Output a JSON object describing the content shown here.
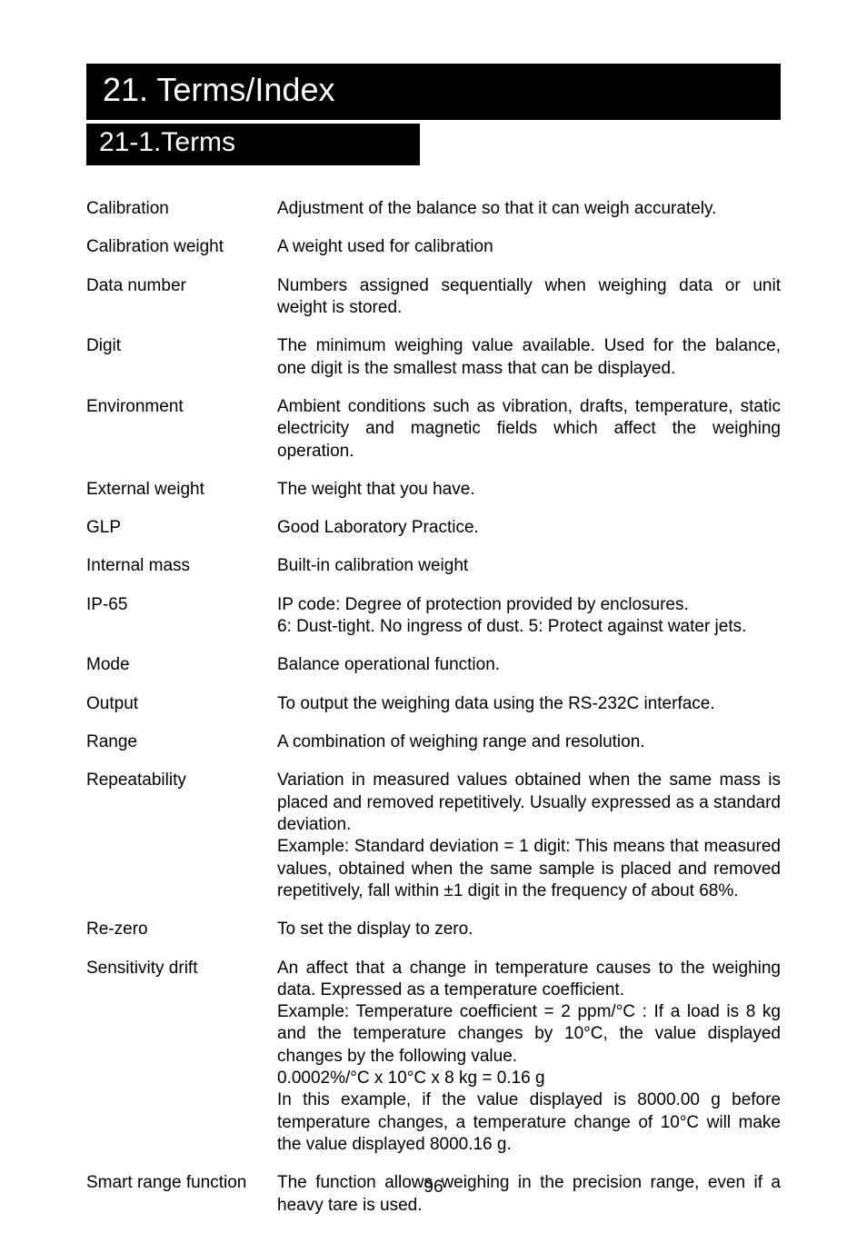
{
  "chapter_title": "21. Terms/Index",
  "section_title": "21-1.Terms",
  "page_number": "96",
  "terms": [
    {
      "term": "Calibration",
      "def": "Adjustment of the balance so that it can weigh accurately."
    },
    {
      "term": "Calibration weight",
      "def": "A weight used for calibration"
    },
    {
      "term": "Data number",
      "def": "Numbers assigned sequentially when weighing data or unit weight is stored."
    },
    {
      "term": "Digit",
      "def": "The minimum weighing value available. Used for the balance, one digit is the smallest mass that can be displayed."
    },
    {
      "term": "Environment",
      "def": "Ambient conditions such as vibration, drafts, temperature, static electricity and magnetic fields which affect the weighing operation."
    },
    {
      "term": "External weight",
      "def": "The weight that you have."
    },
    {
      "term": "GLP",
      "def": "Good Laboratory Practice."
    },
    {
      "term": "Internal mass",
      "def": "Built-in calibration weight"
    },
    {
      "term": "IP-65",
      "def": "IP code: Degree of protection provided by enclosures.\n6: Dust-tight. No ingress of dust. 5: Protect against water jets."
    },
    {
      "term": "Mode",
      "def": "Balance operational function."
    },
    {
      "term": "Output",
      "def": "To output the weighing data using the RS-232C interface."
    },
    {
      "term": "Range",
      "def": "A combination of weighing range and resolution."
    },
    {
      "term": "Repeatability",
      "def": "Variation in measured values obtained when the same mass is placed and removed repetitively. Usually expressed as a standard deviation.\nExample: Standard deviation = 1 digit: This means that measured values, obtained when the same sample is placed and removed repetitively, fall within ±1 digit in the frequency of about 68%."
    },
    {
      "term": "Re-zero",
      "def": "To set the display to zero."
    },
    {
      "term": "Sensitivity drift",
      "def": "An affect that a change in temperature causes to the weighing data. Expressed as a temperature coefficient.\nExample: Temperature coefficient = 2 ppm/°C : If a load is 8 kg and the temperature changes by 10°C, the value displayed changes by the following value.\n0.0002%/°C x 10°C x 8 kg = 0.16 g\nIn this example, if the value displayed is 8000.00 g before temperature changes, a temperature change of 10°C will make the value displayed 8000.16 g."
    },
    {
      "term": "Smart range function",
      "def": "The function allows weighing in the precision range, even if a heavy tare is used."
    }
  ]
}
